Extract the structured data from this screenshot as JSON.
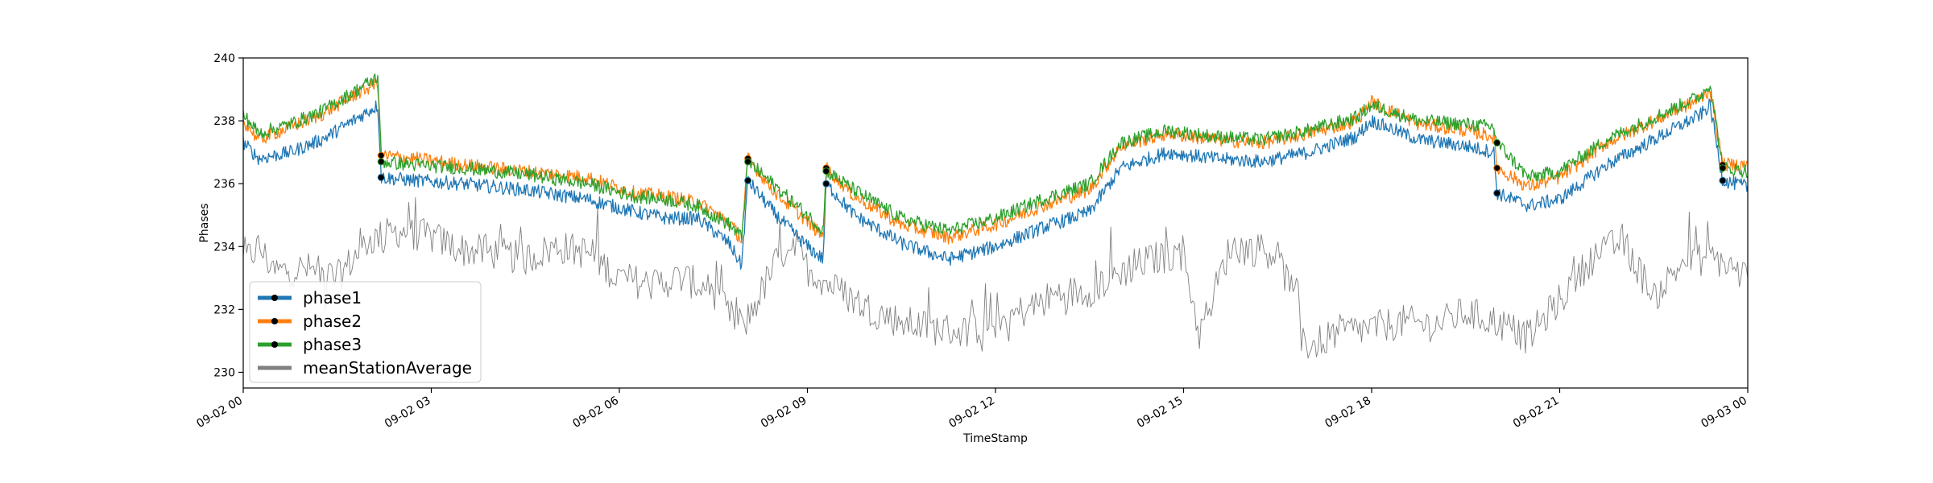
{
  "chart_data": {
    "type": "line",
    "xlabel": "TimeStamp",
    "ylabel": "Phases",
    "xlim": [
      "09-02 00:00",
      "09-03 00:00"
    ],
    "ylim": [
      229.5,
      240
    ],
    "x_unit": "hours from 09-02 00:00",
    "x_ticks": [
      {
        "label": "09-02 00",
        "hour": 0
      },
      {
        "label": "09-02 03",
        "hour": 3
      },
      {
        "label": "09-02 06",
        "hour": 6
      },
      {
        "label": "09-02 09",
        "hour": 9
      },
      {
        "label": "09-02 12",
        "hour": 12
      },
      {
        "label": "09-02 15",
        "hour": 15
      },
      {
        "label": "09-02 18",
        "hour": 18
      },
      {
        "label": "09-02 21",
        "hour": 21
      },
      {
        "label": "09-03 00",
        "hour": 24
      }
    ],
    "y_ticks": [
      {
        "label": "230",
        "value": 230
      },
      {
        "label": "232",
        "value": 232
      },
      {
        "label": "234",
        "value": 234
      },
      {
        "label": "236",
        "value": 236
      },
      {
        "label": "238",
        "value": 238
      },
      {
        "label": "240",
        "value": 240
      }
    ],
    "grid": false,
    "legend_position": "lower-left",
    "series": [
      {
        "name": "phase1",
        "color": "#1f77b4",
        "marker": "black dot (jump points)",
        "x": [
          0,
          0.25,
          0.75,
          1.25,
          1.75,
          2.15,
          2.2,
          2.75,
          3.5,
          4.5,
          5.5,
          6.25,
          6.75,
          7.25,
          7.75,
          7.95,
          8.05,
          8.5,
          9.0,
          9.25,
          9.3,
          9.75,
          10.5,
          11.25,
          12.0,
          12.75,
          13.5,
          14.0,
          14.75,
          15.5,
          16.25,
          17.0,
          17.75,
          18.0,
          18.75,
          19.5,
          19.95,
          20.0,
          20.5,
          21.0,
          21.75,
          22.5,
          23.25,
          23.4,
          23.6,
          24.0
        ],
        "values": [
          237.3,
          236.8,
          237.0,
          237.4,
          238.0,
          238.5,
          236.2,
          236.1,
          236.0,
          235.8,
          235.5,
          235.1,
          234.9,
          234.9,
          234.1,
          233.4,
          236.1,
          235.0,
          234.0,
          233.6,
          236.0,
          235.0,
          234.1,
          233.6,
          234.0,
          234.6,
          235.1,
          236.5,
          237.0,
          236.8,
          236.7,
          237.0,
          237.5,
          238.0,
          237.4,
          237.2,
          237.0,
          235.7,
          235.3,
          235.5,
          236.6,
          237.4,
          238.2,
          238.5,
          236.1,
          235.9
        ]
      },
      {
        "name": "phase2",
        "color": "#ff7f0e",
        "marker": "black dot (jump points)",
        "x": [
          0,
          0.25,
          0.75,
          1.25,
          1.75,
          2.15,
          2.2,
          2.75,
          3.5,
          4.5,
          5.5,
          6.25,
          6.75,
          7.25,
          7.75,
          7.95,
          8.05,
          8.5,
          9.0,
          9.25,
          9.3,
          9.75,
          10.5,
          11.25,
          12.0,
          12.75,
          13.5,
          14.0,
          14.75,
          15.5,
          16.25,
          17.0,
          17.75,
          18.0,
          18.75,
          19.5,
          19.95,
          20.0,
          20.5,
          21.0,
          21.75,
          22.5,
          23.25,
          23.4,
          23.6,
          24.0
        ],
        "values": [
          238.0,
          237.4,
          237.8,
          238.2,
          238.8,
          239.2,
          236.9,
          236.8,
          236.6,
          236.4,
          236.2,
          235.7,
          235.6,
          235.4,
          234.8,
          234.2,
          236.8,
          235.7,
          234.8,
          234.3,
          236.5,
          235.6,
          234.7,
          234.3,
          234.7,
          235.3,
          235.8,
          237.2,
          237.6,
          237.4,
          237.3,
          237.6,
          238.0,
          238.6,
          237.9,
          237.7,
          237.5,
          236.5,
          235.9,
          236.2,
          237.3,
          238.0,
          238.7,
          239.0,
          236.6,
          236.6
        ]
      },
      {
        "name": "phase3",
        "color": "#2ca02c",
        "marker": "black dot (jump points)",
        "x": [
          0,
          0.25,
          0.75,
          1.25,
          1.75,
          2.15,
          2.2,
          2.75,
          3.5,
          4.5,
          5.5,
          6.25,
          6.75,
          7.25,
          7.75,
          7.95,
          8.05,
          8.5,
          9.0,
          9.25,
          9.3,
          9.75,
          10.5,
          11.25,
          12.0,
          12.75,
          13.5,
          14.0,
          14.75,
          15.5,
          16.25,
          17.0,
          17.75,
          18.0,
          18.75,
          19.5,
          19.95,
          20.0,
          20.5,
          21.0,
          21.75,
          22.5,
          23.25,
          23.4,
          23.6,
          24.0
        ],
        "values": [
          238.2,
          237.6,
          237.9,
          238.3,
          238.9,
          239.4,
          236.7,
          236.6,
          236.5,
          236.3,
          236.0,
          235.6,
          235.5,
          235.3,
          234.7,
          234.3,
          236.7,
          235.9,
          235.0,
          234.5,
          236.4,
          235.8,
          234.9,
          234.5,
          234.9,
          235.5,
          236.0,
          237.3,
          237.7,
          237.5,
          237.4,
          237.7,
          238.1,
          238.5,
          238.0,
          237.9,
          237.8,
          237.3,
          236.2,
          236.4,
          237.4,
          238.1,
          238.8,
          239.2,
          236.5,
          236.4
        ]
      },
      {
        "name": "meanStationAverage",
        "color": "#808080",
        "x": [
          0,
          0.25,
          0.5,
          1.0,
          1.5,
          2.0,
          2.5,
          3.0,
          3.5,
          4.0,
          4.5,
          5.0,
          5.5,
          6.0,
          6.5,
          7.0,
          7.5,
          7.75,
          8.0,
          8.5,
          8.75,
          9.0,
          9.5,
          10.0,
          10.5,
          11.0,
          11.5,
          12.0,
          12.5,
          13.0,
          13.5,
          14.0,
          14.5,
          15.0,
          15.25,
          15.75,
          16.5,
          17.0,
          17.5,
          18.0,
          18.5,
          19.0,
          19.5,
          20.0,
          20.5,
          21.0,
          21.5,
          22.0,
          22.5,
          23.0,
          23.5,
          24.0
        ],
        "values": [
          233.5,
          234.0,
          233.2,
          233.3,
          233.0,
          234.2,
          234.5,
          234.3,
          233.9,
          233.8,
          233.6,
          234.0,
          233.8,
          233.0,
          232.8,
          233.0,
          232.6,
          231.8,
          231.5,
          233.5,
          234.2,
          233.3,
          232.6,
          232.0,
          231.6,
          231.4,
          231.3,
          231.6,
          232.0,
          232.5,
          232.6,
          233.2,
          233.6,
          233.8,
          231.2,
          234.0,
          233.8,
          230.8,
          231.3,
          231.4,
          231.6,
          231.5,
          231.9,
          231.6,
          231.1,
          232.3,
          233.6,
          234.2,
          232.4,
          233.6,
          233.6,
          233.0
        ]
      }
    ]
  }
}
